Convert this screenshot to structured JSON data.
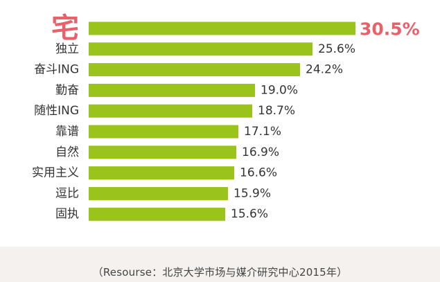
{
  "chart_data": {
    "type": "bar",
    "orientation": "horizontal",
    "categories": [
      "宅",
      "独立",
      "奋斗ING",
      "勤奋",
      "随性ING",
      "靠谱",
      "自然",
      "实用主义",
      "逗比",
      "固执"
    ],
    "values": [
      30.5,
      25.6,
      24.2,
      19.0,
      18.7,
      17.1,
      16.9,
      16.6,
      15.9,
      15.6
    ],
    "value_labels": [
      "30.5%",
      "25.6%",
      "24.2%",
      "19.0%",
      "18.7%",
      "17.1%",
      "16.9%",
      "16.6%",
      "15.9%",
      "15.6%"
    ],
    "highlight_index": 0,
    "xlim": [
      0,
      30.5
    ],
    "grid": false,
    "legend": "none"
  },
  "colors": {
    "bar": "#9ac31c",
    "highlight_text": "#e8606a",
    "label_text": "#333333",
    "footer_bg": "#f4f1ee"
  },
  "source_note": "（Resourse：北京大学市场与媒介研究中心2015年）"
}
